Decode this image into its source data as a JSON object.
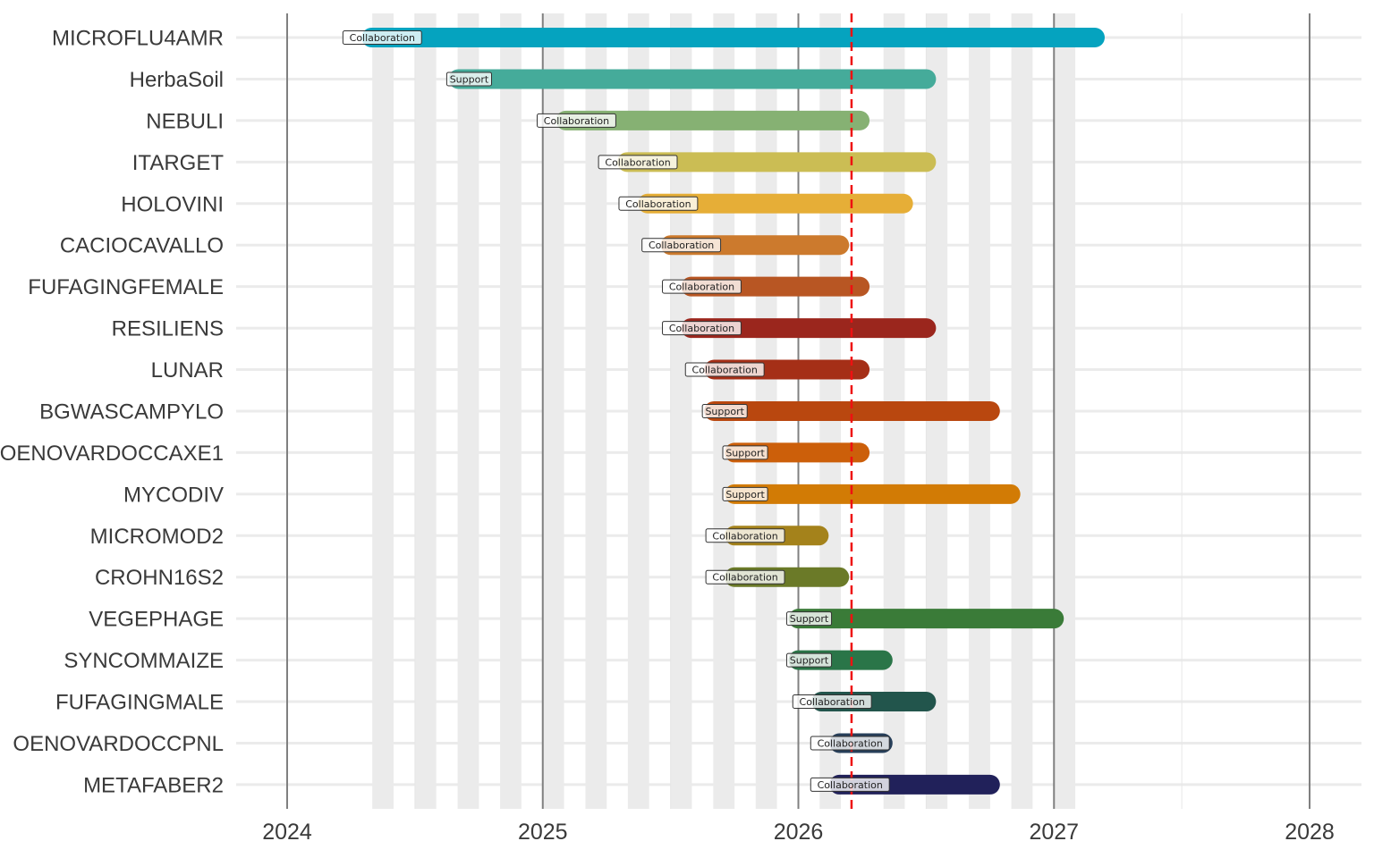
{
  "chart_data": {
    "type": "gantt",
    "title": "",
    "xlabel": "",
    "ylabel": "",
    "xlim": [
      2023.7,
      2028.2
    ],
    "x_ticks": [
      "2024",
      "2025",
      "2026",
      "2027",
      "2028"
    ],
    "x_tick_values": [
      2024,
      2025,
      2026,
      2027,
      2028
    ],
    "today_line": 2026.208,
    "shaded_bands_start": [
      2024.333,
      2024.5,
      2024.667,
      2024.833,
      2025.0,
      2025.167,
      2025.333,
      2025.5,
      2025.667,
      2025.833,
      2026.083,
      2026.333,
      2026.5,
      2026.667,
      2026.833,
      2027.0
    ],
    "shaded_band_width": 0.0833,
    "projects": [
      {
        "name": "MICROFLU4AMR",
        "start": 2024.33,
        "end": 2027.16,
        "type": "Collaboration",
        "color": "#05a3bf"
      },
      {
        "name": "HerbaSoil",
        "start": 2024.67,
        "end": 2026.5,
        "type": "Support",
        "color": "#45ab9a"
      },
      {
        "name": "NEBULI",
        "start": 2025.09,
        "end": 2026.24,
        "type": "Collaboration",
        "color": "#86b173"
      },
      {
        "name": "ITARGET",
        "start": 2025.33,
        "end": 2026.5,
        "type": "Collaboration",
        "color": "#cbbd54"
      },
      {
        "name": "HOLOVINI",
        "start": 2025.41,
        "end": 2026.41,
        "type": "Collaboration",
        "color": "#e6ae37"
      },
      {
        "name": "CACIOCAVALLO",
        "start": 2025.5,
        "end": 2026.16,
        "type": "Collaboration",
        "color": "#cc7a2d"
      },
      {
        "name": "FUFAGINGFEMALE",
        "start": 2025.58,
        "end": 2026.24,
        "type": "Collaboration",
        "color": "#b85623"
      },
      {
        "name": "RESILIENS",
        "start": 2025.58,
        "end": 2026.5,
        "type": "Collaboration",
        "color": "#9b261d"
      },
      {
        "name": "LUNAR",
        "start": 2025.67,
        "end": 2026.24,
        "type": "Collaboration",
        "color": "#a52f17"
      },
      {
        "name": "BGWASCAMPYLO",
        "start": 2025.67,
        "end": 2026.75,
        "type": "Support",
        "color": "#b9470f"
      },
      {
        "name": "OENOVARDOCCAXE1",
        "start": 2025.75,
        "end": 2026.24,
        "type": "Support",
        "color": "#cc5f0a"
      },
      {
        "name": "MYCODIV",
        "start": 2025.75,
        "end": 2026.83,
        "type": "Support",
        "color": "#d27b05"
      },
      {
        "name": "MICROMOD2",
        "start": 2025.75,
        "end": 2026.08,
        "type": "Collaboration",
        "color": "#a4821b"
      },
      {
        "name": "CROHN16S2",
        "start": 2025.75,
        "end": 2026.16,
        "type": "Collaboration",
        "color": "#6b7a28"
      },
      {
        "name": "VEGEPHAGE",
        "start": 2026.0,
        "end": 2027.0,
        "type": "Support",
        "color": "#3a7b38"
      },
      {
        "name": "SYNCOMMAIZE",
        "start": 2026.0,
        "end": 2026.33,
        "type": "Support",
        "color": "#2a7548"
      },
      {
        "name": "FUFAGINGMALE",
        "start": 2026.09,
        "end": 2026.5,
        "type": "Collaboration",
        "color": "#22554c"
      },
      {
        "name": "OENOVARDOCCPNL",
        "start": 2026.16,
        "end": 2026.33,
        "type": "Collaboration",
        "color": "#273f5a"
      },
      {
        "name": "METAFABER2",
        "start": 2026.16,
        "end": 2026.75,
        "type": "Collaboration",
        "color": "#21215a"
      }
    ]
  }
}
